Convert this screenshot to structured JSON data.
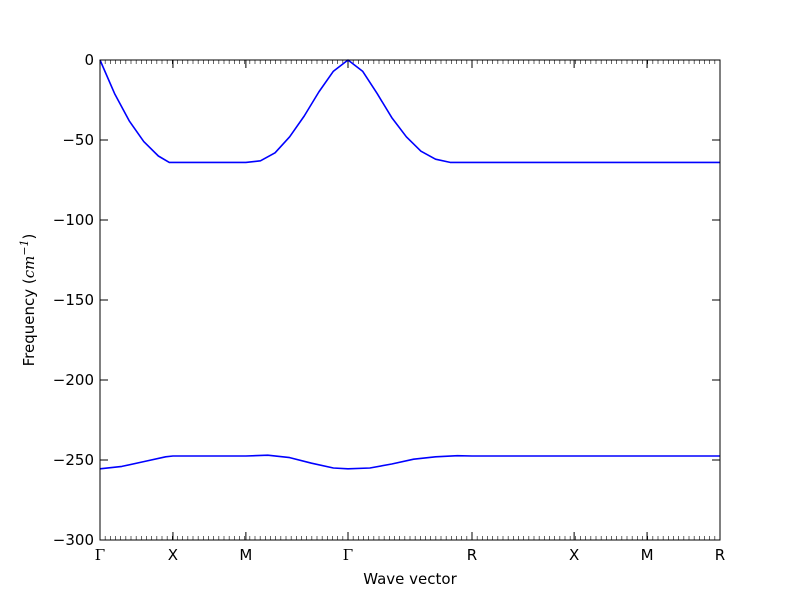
{
  "chart_data": {
    "type": "line",
    "title": "",
    "xlabel": "Wave vector",
    "ylabel": {
      "prefix": "Frequency (",
      "unit_base": "cm",
      "unit_exponent": "−1",
      "suffix": ")"
    },
    "ylim": [
      -300,
      0
    ],
    "y_ticks": [
      0,
      -50,
      -100,
      -150,
      -200,
      -250,
      -300
    ],
    "y_tick_labels": [
      "0",
      "−50",
      "−100",
      "−150",
      "−200",
      "−250",
      "−300"
    ],
    "xlim": [
      0,
      8.5
    ],
    "x_ticks": [
      {
        "pos": 0,
        "label": "Γ"
      },
      {
        "pos": 1.0,
        "label": "X"
      },
      {
        "pos": 2.0,
        "label": "M"
      },
      {
        "pos": 3.4,
        "label": "Γ"
      },
      {
        "pos": 5.1,
        "label": "R"
      },
      {
        "pos": 6.5,
        "label": "X"
      },
      {
        "pos": 7.5,
        "label": "M"
      },
      {
        "pos": 8.5,
        "label": "R"
      }
    ],
    "grid": false,
    "line_color": "#0000ff",
    "series": [
      {
        "x": [
          0,
          0.2,
          0.4,
          0.6,
          0.8,
          0.95,
          1.0,
          1.5,
          2.0,
          2.2,
          2.4,
          2.6,
          2.8,
          3.0,
          3.2,
          3.4,
          3.6,
          3.8,
          4.0,
          4.2,
          4.4,
          4.6,
          4.8,
          5.0,
          5.1,
          6.0,
          7.0,
          8.5
        ],
        "y": [
          0,
          -21,
          -38,
          -51,
          -60,
          -64,
          -64,
          -64,
          -64,
          -63,
          -58,
          -48,
          -35,
          -20,
          -7,
          0,
          -7,
          -21,
          -36,
          -48,
          -57,
          -62,
          -64,
          -64,
          -64,
          -64,
          -64,
          -64
        ]
      },
      {
        "x": [
          0,
          0.3,
          0.6,
          0.9,
          1.0,
          1.5,
          2.0,
          2.3,
          2.6,
          2.9,
          3.2,
          3.4,
          3.7,
          4.0,
          4.3,
          4.6,
          4.9,
          5.1,
          6.0,
          7.0,
          8.5
        ],
        "y": [
          -255.5,
          -254,
          -251,
          -248,
          -247.5,
          -247.5,
          -247.5,
          -247,
          -248.5,
          -252,
          -255,
          -255.5,
          -255,
          -252.5,
          -249.5,
          -248,
          -247.3,
          -247.5,
          -247.5,
          -247.5,
          -247.5
        ]
      }
    ]
  }
}
